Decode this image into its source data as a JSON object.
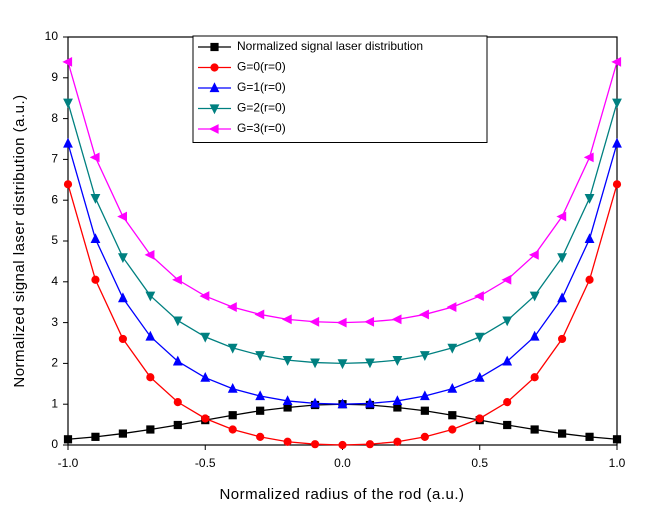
{
  "chart_data": {
    "type": "line",
    "xlabel": "Normalized radius of the rod (a.u.)",
    "ylabel": "Normalized signal laser distribution (a.u.)",
    "x": [
      -1,
      -0.9,
      -0.8,
      -0.7,
      -0.6,
      -0.5,
      -0.4,
      -0.3,
      -0.2,
      -0.1,
      0,
      0.1,
      0.2,
      0.3,
      0.4,
      0.5,
      0.6,
      0.7,
      0.8,
      0.9,
      1
    ],
    "series": [
      {
        "name": "Normalized signal laser distribution",
        "color": "#000000",
        "marker": "square",
        "values": [
          0.14,
          0.2,
          0.28,
          0.38,
          0.49,
          0.61,
          0.73,
          0.84,
          0.92,
          0.98,
          1,
          0.98,
          0.92,
          0.84,
          0.73,
          0.61,
          0.49,
          0.38,
          0.28,
          0.2,
          0.14
        ]
      },
      {
        "name": "G=0(r=0)",
        "color": "#ff0000",
        "marker": "circle",
        "values": [
          6.39,
          4.05,
          2.6,
          1.66,
          1.05,
          0.65,
          0.38,
          0.2,
          0.08,
          0.02,
          0,
          0.02,
          0.08,
          0.2,
          0.38,
          0.65,
          1.05,
          1.66,
          2.6,
          4.05,
          6.39
        ]
      },
      {
        "name": "G=1(r=0)",
        "color": "#0000ff",
        "marker": "triangle-up",
        "values": [
          7.39,
          5.05,
          3.6,
          2.66,
          2.05,
          1.65,
          1.38,
          1.2,
          1.08,
          1.02,
          1,
          1.02,
          1.08,
          1.2,
          1.38,
          1.65,
          2.05,
          2.66,
          3.6,
          5.05,
          7.39
        ]
      },
      {
        "name": "G=2(r=0)",
        "color": "#008080",
        "marker": "triangle-down",
        "values": [
          8.39,
          6.05,
          4.6,
          3.66,
          3.05,
          2.65,
          2.38,
          2.2,
          2.08,
          2.02,
          2,
          2.02,
          2.08,
          2.2,
          2.38,
          2.65,
          3.05,
          3.66,
          4.6,
          6.05,
          8.39
        ]
      },
      {
        "name": "G=3(r=0)",
        "color": "#ff00ff",
        "marker": "triangle-left",
        "values": [
          9.39,
          7.05,
          5.6,
          4.66,
          4.05,
          3.65,
          3.38,
          3.2,
          3.08,
          3.02,
          3,
          3.02,
          3.08,
          3.2,
          3.38,
          3.65,
          4.05,
          4.66,
          5.6,
          7.05,
          9.39
        ]
      }
    ],
    "xlim": [
      -1,
      1
    ],
    "ylim": [
      0,
      10
    ],
    "xticks": [
      {
        "value": -1,
        "label": "-1.0"
      },
      -0.5,
      {
        "value": 0,
        "label": "0.0"
      },
      0.5,
      {
        "value": 1,
        "label": "1.0"
      }
    ],
    "yticks": [
      0,
      1,
      2,
      3,
      4,
      5,
      6,
      7,
      8,
      9,
      10
    ],
    "grid": false,
    "legend": "top"
  }
}
